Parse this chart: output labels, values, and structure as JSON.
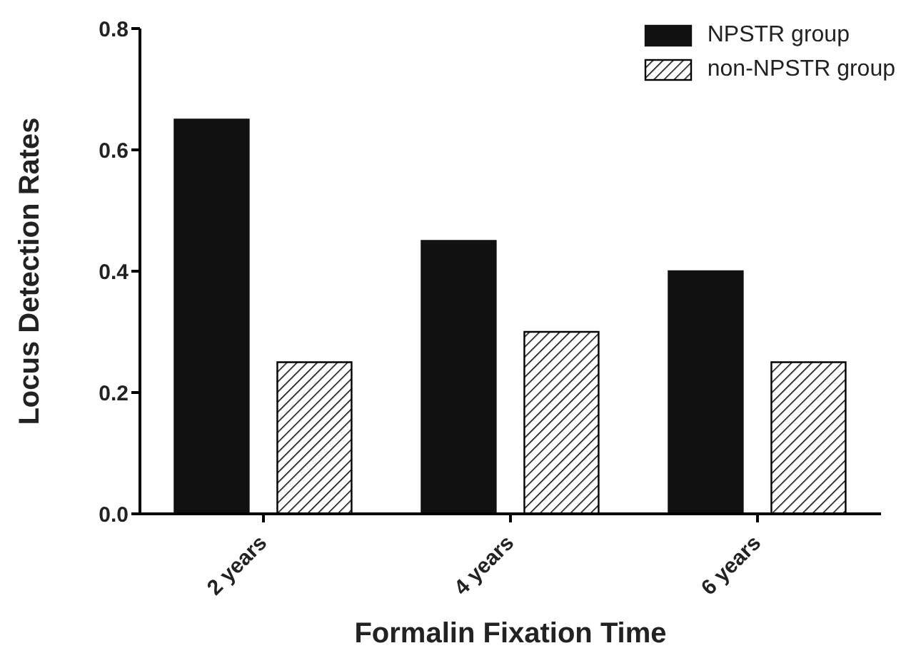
{
  "chart_data": {
    "type": "bar",
    "xlabel": "Formalin Fixation Time",
    "ylabel": "Locus Detection Rates",
    "categories": [
      "2 years",
      "4 years",
      "6 years"
    ],
    "series": [
      {
        "name": "NPSTR group",
        "color": "#111111",
        "values": [
          0.65,
          0.45,
          0.4
        ]
      },
      {
        "name": "non-NPSTR group",
        "color": "#000000",
        "values": [
          0.25,
          0.3,
          0.25
        ]
      }
    ],
    "ylim": [
      0,
      0.8
    ],
    "yticks": [
      {
        "value": 0,
        "label": "0.0"
      },
      {
        "value": 0.2,
        "label": "0.2"
      },
      {
        "value": 0.4,
        "label": "0.4"
      },
      {
        "value": 0.6,
        "label": "0.6"
      },
      {
        "value": 0.8,
        "label": "0.8"
      }
    ],
    "grid": false,
    "legend": "top right"
  }
}
